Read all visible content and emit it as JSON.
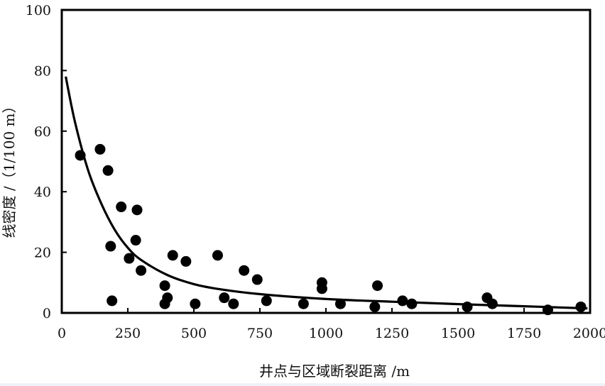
{
  "chart_data": {
    "type": "scatter",
    "xlabel": "井点与区域断裂距离 /m",
    "ylabel": "线密度 /（1/100 m）",
    "xlim": [
      0,
      2000
    ],
    "ylim": [
      0,
      100
    ],
    "x_ticks": [
      0,
      250,
      500,
      750,
      1000,
      1250,
      1500,
      1750,
      2000
    ],
    "y_ticks": [
      0,
      20,
      40,
      60,
      80,
      100
    ],
    "x_tick_labels": [
      "0",
      "250",
      "500",
      "750",
      "1000",
      "1250",
      "1500",
      "1750",
      "2000"
    ],
    "y_tick_labels": [
      "0",
      "20",
      "40",
      "60",
      "80",
      "100"
    ],
    "grid": false,
    "legend": "none",
    "point_color": "#000000",
    "series": [
      {
        "type": "scatter",
        "points": [
          {
            "x": 70,
            "y": 52
          },
          {
            "x": 145,
            "y": 54
          },
          {
            "x": 175,
            "y": 47
          },
          {
            "x": 185,
            "y": 22
          },
          {
            "x": 190,
            "y": 4
          },
          {
            "x": 225,
            "y": 35
          },
          {
            "x": 255,
            "y": 18
          },
          {
            "x": 280,
            "y": 24
          },
          {
            "x": 285,
            "y": 34
          },
          {
            "x": 300,
            "y": 14
          },
          {
            "x": 390,
            "y": 9
          },
          {
            "x": 390,
            "y": 3
          },
          {
            "x": 400,
            "y": 5
          },
          {
            "x": 420,
            "y": 19
          },
          {
            "x": 470,
            "y": 17
          },
          {
            "x": 505,
            "y": 3
          },
          {
            "x": 590,
            "y": 19
          },
          {
            "x": 615,
            "y": 5
          },
          {
            "x": 650,
            "y": 3
          },
          {
            "x": 690,
            "y": 14
          },
          {
            "x": 740,
            "y": 11
          },
          {
            "x": 775,
            "y": 4
          },
          {
            "x": 915,
            "y": 3
          },
          {
            "x": 985,
            "y": 10
          },
          {
            "x": 985,
            "y": 8
          },
          {
            "x": 1055,
            "y": 3
          },
          {
            "x": 1185,
            "y": 2
          },
          {
            "x": 1195,
            "y": 9
          },
          {
            "x": 1290,
            "y": 4
          },
          {
            "x": 1325,
            "y": 3
          },
          {
            "x": 1535,
            "y": 2
          },
          {
            "x": 1610,
            "y": 5
          },
          {
            "x": 1630,
            "y": 3
          },
          {
            "x": 1840,
            "y": 1
          },
          {
            "x": 1965,
            "y": 2
          }
        ]
      },
      {
        "type": "line",
        "smooth": true,
        "points": [
          {
            "x": 15,
            "y": 78
          },
          {
            "x": 50,
            "y": 63
          },
          {
            "x": 100,
            "y": 47
          },
          {
            "x": 150,
            "y": 36
          },
          {
            "x": 200,
            "y": 27.5
          },
          {
            "x": 250,
            "y": 21.5
          },
          {
            "x": 300,
            "y": 17.5
          },
          {
            "x": 400,
            "y": 12.5
          },
          {
            "x": 500,
            "y": 9.5
          },
          {
            "x": 600,
            "y": 7.8
          },
          {
            "x": 750,
            "y": 6.2
          },
          {
            "x": 1000,
            "y": 4.6
          },
          {
            "x": 1250,
            "y": 3.7
          },
          {
            "x": 1500,
            "y": 2.9
          },
          {
            "x": 1750,
            "y": 2.2
          },
          {
            "x": 1990,
            "y": 1.5
          }
        ]
      }
    ]
  }
}
